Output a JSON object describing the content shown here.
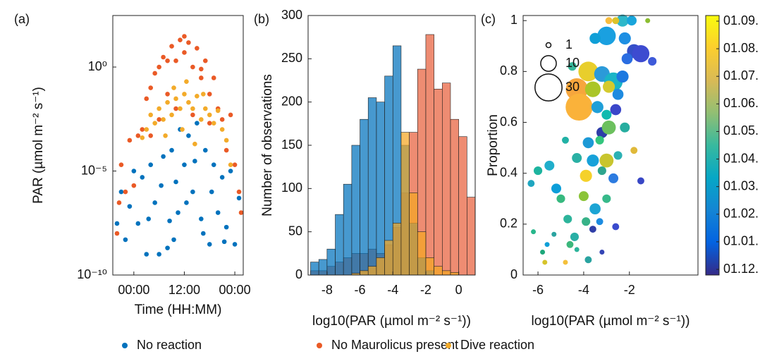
{
  "chart_data": [
    {
      "type": "scatter",
      "label": "(a)",
      "xlabel": "Time (HH:MM)",
      "ylabel": "PAR (µmol m⁻² s⁻¹)",
      "xlim": [
        -5,
        26
      ],
      "ylim": [
        1e-10,
        300
      ],
      "yscale": "log",
      "xticks": [
        {
          "value": 0,
          "label": "00:00"
        },
        {
          "value": 12,
          "label": "12:00"
        },
        {
          "value": 24,
          "label": "00:00"
        }
      ],
      "yticks": [
        {
          "value": 1e-10,
          "label": "10⁻¹⁰"
        },
        {
          "value": 1e-05,
          "label": "10⁻⁵"
        },
        {
          "value": 1,
          "label": "10⁰"
        }
      ],
      "series": [
        {
          "name": "No reaction",
          "color": "#0072bd",
          "x": [
            -4,
            -3,
            -2,
            -1,
            0,
            1,
            2,
            3,
            4,
            5,
            6,
            7,
            8,
            9,
            10,
            11,
            12,
            13,
            14,
            15,
            16,
            17,
            18,
            19,
            20,
            21,
            22,
            23,
            24,
            25,
            6.5,
            8.5,
            10.5,
            14.5,
            16.5,
            18.5,
            3.5,
            21.5,
            12.5,
            9.5
          ],
          "y": [
            3e-08,
            1e-06,
            5e-09,
            2e-07,
            1e-05,
            3e-08,
            5e-06,
            1e-09,
            2e-05,
            3e-07,
            1e-09,
            5e-05,
            2e-09,
            0.0001,
            3e-06,
            0.001,
            2e-05,
            0.0005,
            1e-06,
            0.002,
            5e-08,
            0.0001,
            3e-09,
            2e-05,
            1e-07,
            5e-06,
            2e-08,
            1e-05,
            3e-09,
            5e-07,
            2e-06,
            4e-08,
            1e-07,
            3e-05,
            1e-08,
            1e-06,
            5e-08,
            4e-09,
            3e-07,
            5e-09
          ]
        },
        {
          "name": "No Maurolicus present",
          "color": "#ea5a26",
          "x": [
            -4,
            -3.5,
            -3,
            -2,
            -1,
            0,
            1,
            2,
            3,
            4,
            5,
            6,
            7,
            8,
            9,
            10,
            11,
            12,
            13,
            14,
            15,
            16,
            17,
            18,
            19,
            20,
            21,
            22,
            23,
            24,
            25,
            25.5,
            6,
            10,
            14,
            18,
            12,
            8,
            16,
            4
          ],
          "y": [
            1e-08,
            3e-07,
            2e-05,
            1e-06,
            0.0003,
            2e-06,
            0.0005,
            0.001,
            0.03,
            0.1,
            0.5,
            1,
            3,
            0.05,
            10,
            2,
            20,
            5,
            15,
            1,
            8,
            0.3,
            2,
            0.05,
            0.3,
            0.01,
            0.003,
            0.0001,
            0.005,
            2e-05,
            1e-06,
            1e-07,
            0.003,
            0.01,
            0.005,
            0.002,
            30,
            2,
            0.8,
            0.0005
          ]
        },
        {
          "name": "Dive reaction",
          "color": "#f3ab2a",
          "x": [
            3,
            4,
            5,
            6,
            7,
            8,
            9,
            10,
            11,
            12,
            13,
            14,
            15,
            16,
            17,
            18,
            19,
            20,
            21,
            22,
            9.5,
            12.5,
            7.5,
            14.5,
            11.5,
            16.5,
            23,
            2
          ],
          "y": [
            0.001,
            0.005,
            0.002,
            0.01,
            0.003,
            0.02,
            0.005,
            0.03,
            0.01,
            0.05,
            0.02,
            0.01,
            0.04,
            0.003,
            0.01,
            0.005,
            0.002,
            0.008,
            0.001,
            0.0003,
            0.1,
            0.2,
            0.0005,
            0.0002,
            0.001,
            0.05,
            2e-05,
            0.0004
          ]
        }
      ]
    },
    {
      "type": "histogram",
      "label": "(b)",
      "xlabel": "log10(PAR (µmol m⁻² s⁻¹))",
      "ylabel": "Number of observations",
      "xlim": [
        -9.15,
        1
      ],
      "ylim": [
        0,
        300
      ],
      "xticks": [
        -8,
        -6,
        -4,
        -2,
        0
      ],
      "yticks": [
        0,
        50,
        100,
        150,
        200,
        250,
        300
      ],
      "bins": [
        -9,
        -8.5,
        -8,
        -7.5,
        -7,
        -6.5,
        -6,
        -5.5,
        -5,
        -4.5,
        -4,
        -3.5,
        -3,
        -2.5,
        -2,
        -1.5,
        -1,
        -0.5,
        0,
        0.5,
        1
      ],
      "series": [
        {
          "color": "#e8603c",
          "values": [
            5,
            5,
            10,
            15,
            20,
            25,
            25,
            30,
            25,
            35,
            55,
            95,
            165,
            238,
            278,
            215,
            222,
            180,
            160,
            90
          ]
        },
        {
          "color": "#0072bd",
          "values": [
            15,
            18,
            30,
            70,
            105,
            150,
            180,
            205,
            200,
            230,
            265,
            150,
            60,
            20,
            5,
            0,
            0,
            0,
            0,
            0
          ]
        },
        {
          "color": "#f5a623",
          "values": [
            0,
            0,
            0,
            0,
            0,
            2,
            5,
            10,
            20,
            40,
            60,
            165,
            95,
            50,
            20,
            10,
            5,
            3,
            0,
            0
          ]
        }
      ]
    },
    {
      "type": "bubble",
      "label": "(c)",
      "xlabel": "log10(PAR (µmol m⁻² s⁻¹))",
      "ylabel": "Proportion",
      "xlim": [
        -6.65,
        1
      ],
      "ylim": [
        0,
        1.02
      ],
      "xticks": [
        -6,
        -4,
        -2
      ],
      "yticks": [
        0,
        0.2,
        0.4,
        0.6,
        0.8,
        1
      ],
      "x": [
        -2.3,
        -1.9,
        -2.9,
        -1.2,
        -2.6,
        -3.0,
        -2.2,
        -3.5,
        -1.8,
        -1.5,
        -1.0,
        -2.1,
        -4.5,
        -3.8,
        -3.2,
        -2.7,
        -2.3,
        -4.3,
        -3.6,
        -2.9,
        -2.5,
        -4.2,
        -3.4,
        -2.6,
        -3.0,
        -3.2,
        -2.9,
        -2.2,
        -4.8,
        -3.8,
        -3.3,
        -1.8,
        -5.5,
        -4.3,
        -3.6,
        -3.0,
        -2.5,
        -6.0,
        -5.2,
        -3.9,
        -3.2,
        -2.7,
        -1.5,
        -6.3,
        -5.0,
        -4.0,
        -3.5,
        -3.0,
        -4.7,
        -3.9,
        -3.3,
        -2.6,
        -6.2,
        -5.3,
        -4.4,
        -3.6,
        -5.6,
        -4.6,
        -4.3,
        -3.2,
        -5.8,
        -5.7,
        -4.8,
        -3.8
      ],
      "y": [
        1.0,
        1.0,
        1.0,
        1.0,
        1.0,
        0.94,
        0.93,
        0.93,
        0.88,
        0.87,
        0.84,
        0.85,
        0.82,
        0.8,
        0.79,
        0.76,
        0.78,
        0.73,
        0.73,
        0.74,
        0.71,
        0.66,
        0.66,
        0.65,
        0.63,
        0.56,
        0.58,
        0.58,
        0.53,
        0.52,
        0.53,
        0.49,
        0.43,
        0.46,
        0.45,
        0.45,
        0.47,
        0.41,
        0.34,
        0.39,
        0.41,
        0.38,
        0.37,
        0.36,
        0.3,
        0.31,
        0.26,
        0.3,
        0.22,
        0.21,
        0.21,
        0.19,
        0.17,
        0.16,
        0.15,
        0.18,
        0.12,
        0.12,
        0.1,
        0.09,
        0.09,
        0.05,
        0.05,
        0.06
      ],
      "sizes": [
        6,
        4,
        2,
        1,
        2,
        14,
        6,
        5,
        8,
        12,
        3,
        5,
        3,
        16,
        10,
        14,
        6,
        20,
        10,
        6,
        5,
        30,
        6,
        5,
        4,
        5,
        8,
        4,
        2,
        5,
        3,
        2,
        4,
        4,
        6,
        8,
        3,
        3,
        4,
        6,
        3,
        4,
        2,
        2,
        3,
        4,
        5,
        3,
        3,
        3,
        2,
        2,
        1,
        1,
        3,
        2,
        1,
        2,
        1,
        1,
        1,
        1,
        1,
        2
      ],
      "colors": [
        "#2eb7c9",
        "#19a5db",
        "#f9bd3e",
        "#8bbd30",
        "#dbc32a",
        "#1aa0e0",
        "#1e8fe3",
        "#0f9fd7",
        "#354fc8",
        "#3d4bd0",
        "#3e5ad9",
        "#2a6de1",
        "#37b89a",
        "#e8ce2c",
        "#2b9ad9",
        "#1ab4c7",
        "#1c78e0",
        "#f6a63d",
        "#aac528",
        "#d4ca2e",
        "#1e8be0",
        "#fab23a",
        "#1f9fd8",
        "#3a46c9",
        "#0fbaaf",
        "#2e3da8",
        "#6cc05e",
        "#26ad9f",
        "#21b1a5",
        "#1c99d6",
        "#33c67d",
        "#e0b93a",
        "#20aecb",
        "#2ab0a4",
        "#17a1d9",
        "#c8c52e",
        "#2bb1b4",
        "#1db49f",
        "#0c9ed9",
        "#f5d12a",
        "#2ea58e",
        "#2c7be0",
        "#3847c5",
        "#1fa6c0",
        "#37b97f",
        "#8bc439",
        "#1ca4d4",
        "#37b98a",
        "#2db49b",
        "#37b288",
        "#1c8ce1",
        "#3a4bcd",
        "#28b78c",
        "#2aa3a0",
        "#29afa5",
        "#2f3ea7",
        "#0f9fd7",
        "#3cb77c",
        "#2db49b",
        "#3445b5",
        "#1da77a",
        "#d6c42b",
        "#f4c03b",
        "#2aa3a0"
      ],
      "size_legend": [
        1,
        10,
        30
      ],
      "colorbar": {
        "labels": [
          "01.09.",
          "01.08.",
          "01.07.",
          "01.06.",
          "01.05.",
          "01.04.",
          "01.03.",
          "01.02.",
          "01.01.",
          "01.12."
        ],
        "colormap": [
          "#352a87",
          "#0363e1",
          "#1485d4",
          "#06a7c6",
          "#38b99e",
          "#92bf73",
          "#d9ba56",
          "#fcce2e",
          "#f9fb0e"
        ]
      }
    }
  ]
}
